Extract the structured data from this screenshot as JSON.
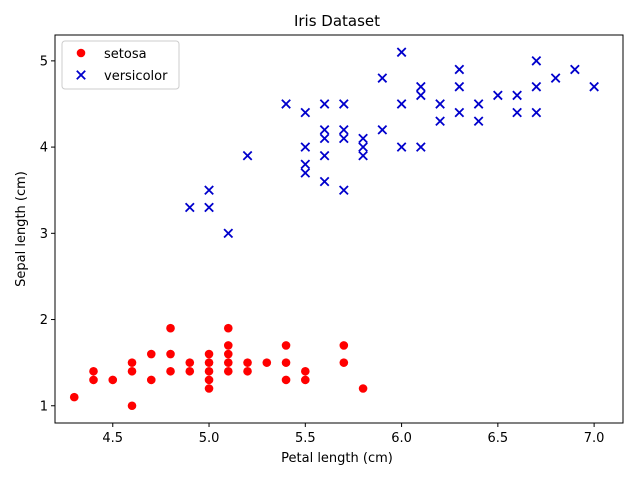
{
  "chart_data": {
    "type": "scatter",
    "title": "Iris Dataset",
    "xlabel": "Petal length (cm)",
    "ylabel": "Sepal length (cm)",
    "xlim": [
      4.2,
      7.15
    ],
    "ylim": [
      0.8,
      5.3
    ],
    "xticks": [
      4.5,
      5.0,
      5.5,
      6.0,
      6.5,
      7.0
    ],
    "xtick_labels": [
      "4.5",
      "5.0",
      "5.5",
      "6.0",
      "6.5",
      "7.0"
    ],
    "yticks": [
      1,
      2,
      3,
      4,
      5
    ],
    "ytick_labels": [
      "1",
      "2",
      "3",
      "4",
      "5"
    ],
    "grid": false,
    "legend_position": "top-left",
    "series": [
      {
        "name": "setosa",
        "marker": "circle",
        "color": "#ff0000",
        "points": [
          [
            4.3,
            1.1
          ],
          [
            4.4,
            1.3
          ],
          [
            4.4,
            1.4
          ],
          [
            4.5,
            1.3
          ],
          [
            4.6,
            1.0
          ],
          [
            4.6,
            1.4
          ],
          [
            4.6,
            1.5
          ],
          [
            4.7,
            1.3
          ],
          [
            4.7,
            1.6
          ],
          [
            4.8,
            1.4
          ],
          [
            4.8,
            1.6
          ],
          [
            4.8,
            1.9
          ],
          [
            4.9,
            1.4
          ],
          [
            4.9,
            1.5
          ],
          [
            5.0,
            1.2
          ],
          [
            5.0,
            1.3
          ],
          [
            5.0,
            1.4
          ],
          [
            5.0,
            1.5
          ],
          [
            5.0,
            1.6
          ],
          [
            5.1,
            1.4
          ],
          [
            5.1,
            1.5
          ],
          [
            5.1,
            1.6
          ],
          [
            5.1,
            1.7
          ],
          [
            5.1,
            1.9
          ],
          [
            5.2,
            1.4
          ],
          [
            5.2,
            1.5
          ],
          [
            5.3,
            1.5
          ],
          [
            5.4,
            1.3
          ],
          [
            5.4,
            1.5
          ],
          [
            5.4,
            1.7
          ],
          [
            5.5,
            1.3
          ],
          [
            5.5,
            1.4
          ],
          [
            5.7,
            1.5
          ],
          [
            5.7,
            1.7
          ],
          [
            5.8,
            1.2
          ]
        ]
      },
      {
        "name": "versicolor",
        "marker": "x",
        "color": "#0000cc",
        "points": [
          [
            4.9,
            3.3
          ],
          [
            5.0,
            3.3
          ],
          [
            5.0,
            3.5
          ],
          [
            5.1,
            3.0
          ],
          [
            5.2,
            3.9
          ],
          [
            5.4,
            4.5
          ],
          [
            5.5,
            3.7
          ],
          [
            5.5,
            3.8
          ],
          [
            5.5,
            4.0
          ],
          [
            5.5,
            4.4
          ],
          [
            5.6,
            3.6
          ],
          [
            5.6,
            3.9
          ],
          [
            5.6,
            4.1
          ],
          [
            5.6,
            4.2
          ],
          [
            5.6,
            4.5
          ],
          [
            5.7,
            3.5
          ],
          [
            5.7,
            4.1
          ],
          [
            5.7,
            4.2
          ],
          [
            5.7,
            4.5
          ],
          [
            5.8,
            3.9
          ],
          [
            5.8,
            4.0
          ],
          [
            5.8,
            4.1
          ],
          [
            5.9,
            4.2
          ],
          [
            5.9,
            4.8
          ],
          [
            6.0,
            4.0
          ],
          [
            6.0,
            4.5
          ],
          [
            6.0,
            5.1
          ],
          [
            6.1,
            4.0
          ],
          [
            6.1,
            4.6
          ],
          [
            6.1,
            4.7
          ],
          [
            6.2,
            4.3
          ],
          [
            6.2,
            4.5
          ],
          [
            6.3,
            4.4
          ],
          [
            6.3,
            4.7
          ],
          [
            6.3,
            4.9
          ],
          [
            6.4,
            4.3
          ],
          [
            6.4,
            4.5
          ],
          [
            6.5,
            4.6
          ],
          [
            6.6,
            4.4
          ],
          [
            6.6,
            4.6
          ],
          [
            6.7,
            4.4
          ],
          [
            6.7,
            4.7
          ],
          [
            6.7,
            5.0
          ],
          [
            6.8,
            4.8
          ],
          [
            6.9,
            4.9
          ],
          [
            7.0,
            4.7
          ]
        ]
      }
    ]
  }
}
